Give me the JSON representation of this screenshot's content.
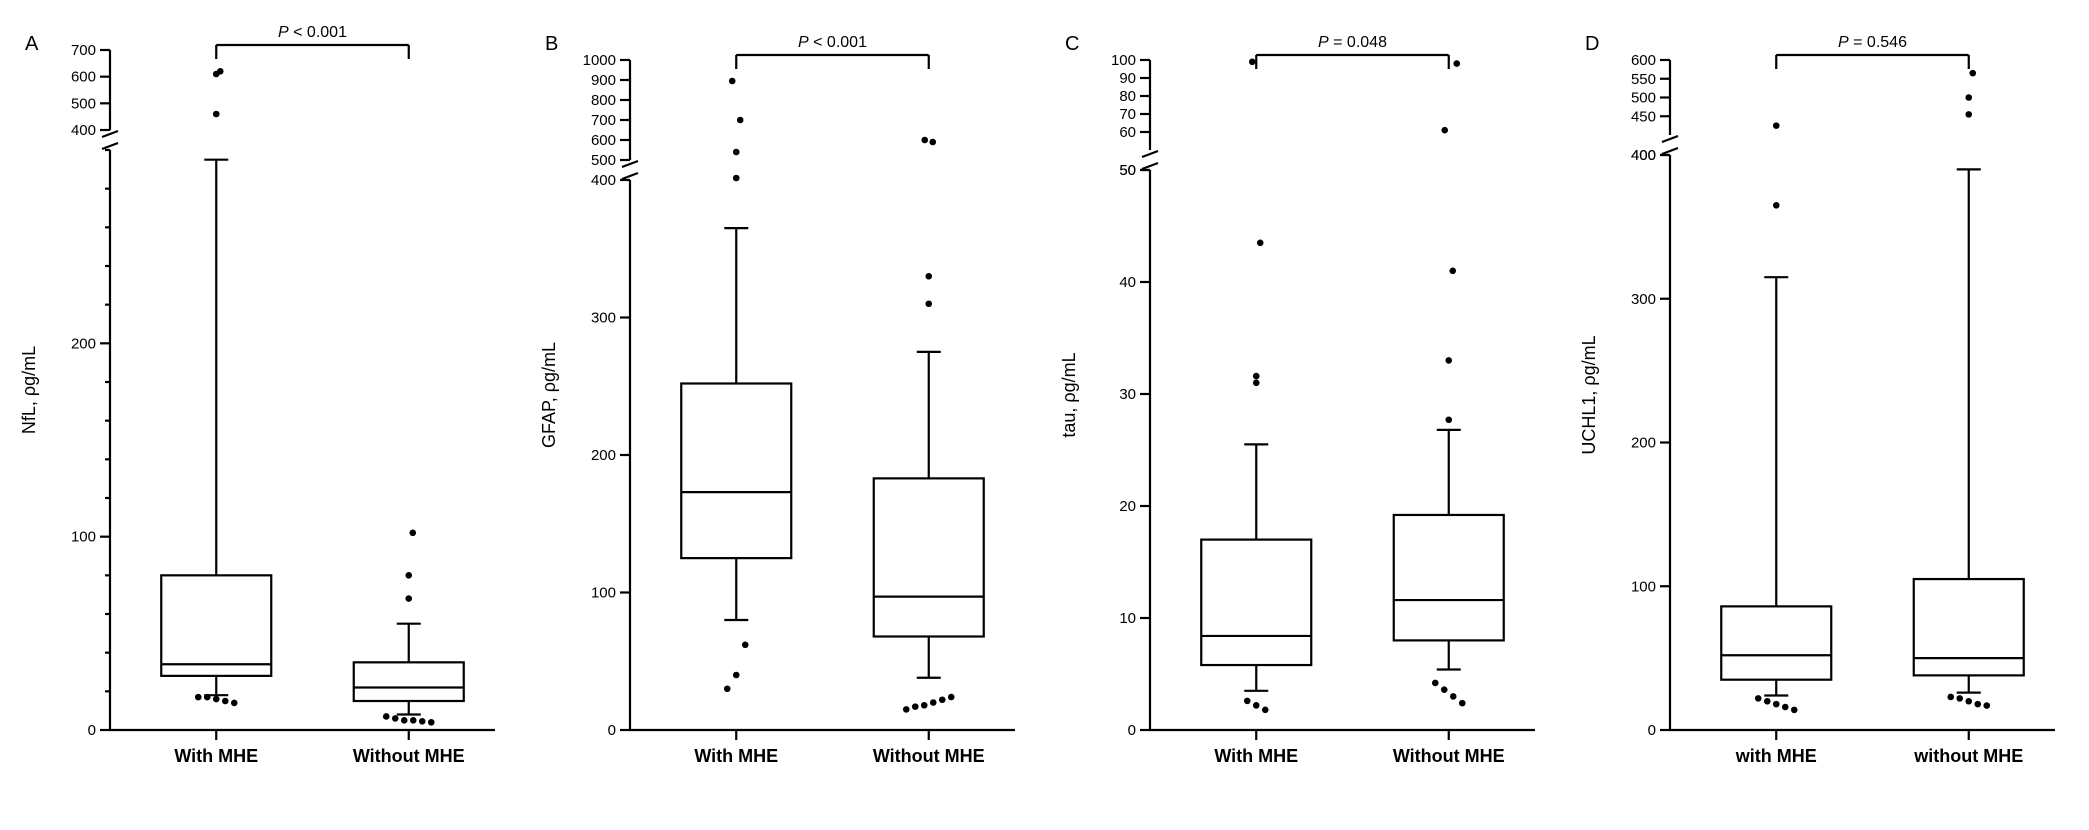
{
  "figure": {
    "font_family": "Arial",
    "stroke_color": "#000000",
    "background_color": "#ffffff",
    "panel_label_fontsize": 20,
    "axis_label_fontsize": 18,
    "tick_fontsize": 15,
    "pvalue_fontsize": 16,
    "xcat_fontsize": 18,
    "box_line_width": 2.2,
    "axis_line_width": 2.2,
    "whisker_cap_half": 12,
    "outlier_radius": 3.3,
    "tick_len_major": 10,
    "tick_len_minor": 5,
    "box_halfwidth": 55
  },
  "panels": [
    {
      "label": "A",
      "ylabel": "NfL, ρg/mL",
      "pvalue": "P < 0.001",
      "pvalue_italic_ix": 0,
      "xcats": [
        "With MHE",
        "Without MHE"
      ],
      "segments": [
        {
          "ymin": 0,
          "ymax": 300,
          "pix_from": 710,
          "pix_to": 130,
          "ticks_major": [
            0,
            100,
            200
          ],
          "ticks_minor": [
            20,
            40,
            60,
            80,
            120,
            140,
            160,
            180,
            220,
            240,
            260,
            280,
            300
          ]
        },
        {
          "ymin": 400,
          "ymax": 700,
          "pix_from": 110,
          "pix_to": 30,
          "ticks_major": [
            400,
            500,
            600,
            700
          ],
          "ticks_minor": []
        }
      ],
      "boxes": [
        {
          "q1": 28,
          "median": 34,
          "q3": 80,
          "wlow": 18,
          "whigh": 295,
          "outliers_low": [
            17,
            17,
            16,
            15,
            14
          ],
          "outliers_high": [
            460,
            610,
            620
          ]
        },
        {
          "q1": 15,
          "median": 22,
          "q3": 35,
          "wlow": 8,
          "whigh": 55,
          "outliers_low": [
            7,
            6,
            5,
            5,
            4.5,
            4
          ],
          "outliers_high": [
            68,
            80,
            102
          ]
        }
      ]
    },
    {
      "label": "B",
      "ylabel": "GFAP, ρg/mL",
      "pvalue": "P < 0.001",
      "pvalue_italic_ix": 0,
      "xcats": [
        "With MHE",
        "Without MHE"
      ],
      "segments": [
        {
          "ymin": 0,
          "ymax": 400,
          "pix_from": 710,
          "pix_to": 160,
          "ticks_major": [
            0,
            100,
            200,
            300,
            400
          ],
          "ticks_minor": []
        },
        {
          "ymin": 500,
          "ymax": 1000,
          "pix_from": 140,
          "pix_to": 40,
          "ticks_major": [
            500,
            600,
            700,
            800,
            900,
            1000
          ],
          "ticks_minor": []
        }
      ],
      "boxes": [
        {
          "q1": 125,
          "median": 173,
          "q3": 252,
          "wlow": 80,
          "whigh": 365,
          "outliers_low": [
            30,
            40,
            62
          ],
          "outliers_high": [
            410,
            540,
            700,
            895
          ]
        },
        {
          "q1": 68,
          "median": 97,
          "q3": 183,
          "wlow": 38,
          "whigh": 275,
          "outliers_low": [
            15,
            17,
            18,
            20,
            22,
            24
          ],
          "outliers_high": [
            310,
            330,
            590,
            600
          ]
        }
      ]
    },
    {
      "label": "C",
      "ylabel": "tau, ρg/mL",
      "pvalue": "P = 0.048",
      "pvalue_italic_ix": 0,
      "xcats": [
        "With MHE",
        "Without MHE"
      ],
      "segments": [
        {
          "ymin": 0,
          "ymax": 50,
          "pix_from": 710,
          "pix_to": 150,
          "ticks_major": [
            0,
            10,
            20,
            30,
            40,
            50
          ],
          "ticks_minor": []
        },
        {
          "ymin": 50,
          "ymax": 100,
          "pix_from": 130,
          "pix_to": 40,
          "ticks_major": [
            50,
            60,
            70,
            80,
            90,
            100
          ],
          "ticks_minor": []
        }
      ],
      "boxes": [
        {
          "q1": 5.8,
          "median": 8.4,
          "q3": 17.0,
          "wlow": 3.5,
          "whigh": 25.5,
          "outliers_low": [
            2.6,
            2.2,
            1.8
          ],
          "outliers_high": [
            31,
            31.6,
            43.5,
            99
          ]
        },
        {
          "q1": 8.0,
          "median": 11.6,
          "q3": 19.2,
          "wlow": 5.4,
          "whigh": 26.8,
          "outliers_low": [
            4.2,
            3.6,
            3.0,
            2.4
          ],
          "outliers_high": [
            27.7,
            33,
            41,
            61,
            98
          ]
        }
      ]
    },
    {
      "label": "D",
      "ylabel": "UCHL1, ρg/mL",
      "pvalue": "P = 0.546",
      "pvalue_italic_ix": 0,
      "xcats": [
        "with MHE",
        "without MHE"
      ],
      "segments": [
        {
          "ymin": 0,
          "ymax": 400,
          "pix_from": 710,
          "pix_to": 135,
          "ticks_major": [
            0,
            100,
            200,
            300,
            400
          ],
          "ticks_minor": []
        },
        {
          "ymin": 400,
          "ymax": 600,
          "pix_from": 115,
          "pix_to": 40,
          "ticks_major": [
            400,
            450,
            500,
            550,
            600
          ],
          "ticks_minor": []
        }
      ],
      "boxes": [
        {
          "q1": 35,
          "median": 52,
          "q3": 86,
          "wlow": 24,
          "whigh": 315,
          "outliers_low": [
            22,
            20,
            18,
            16,
            14
          ],
          "outliers_high": [
            365,
            425
          ]
        },
        {
          "q1": 38,
          "median": 50,
          "q3": 105,
          "wlow": 26,
          "whigh": 390,
          "outliers_low": [
            23,
            22,
            20,
            18,
            17
          ],
          "outliers_high": [
            455,
            500,
            565
          ]
        }
      ]
    }
  ]
}
